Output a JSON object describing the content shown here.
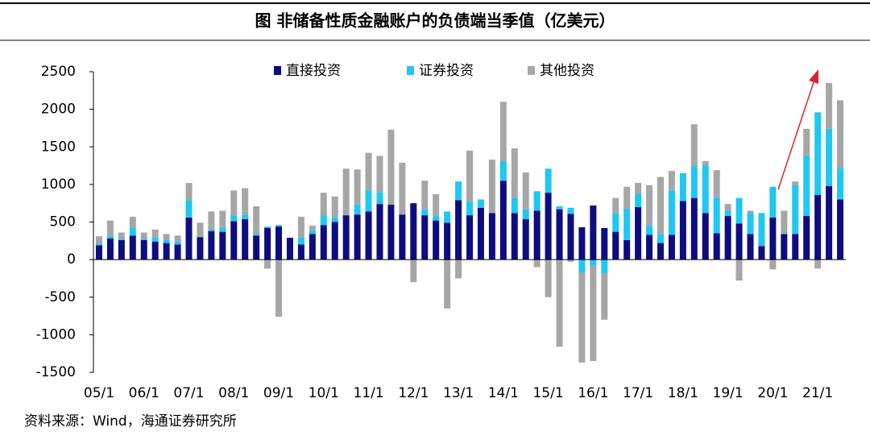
{
  "chart_data": {
    "type": "bar",
    "stacked": true,
    "title": "图  非储备性质金融账户的负债端当季值（亿美元）",
    "source": "资料来源：Wind，海通证券研究所",
    "categories": [
      "05/1",
      null,
      null,
      null,
      "06/1",
      null,
      null,
      null,
      "07/1",
      null,
      null,
      null,
      "08/1",
      null,
      null,
      null,
      "09/1",
      null,
      null,
      null,
      "10/1",
      null,
      null,
      null,
      "11/1",
      null,
      null,
      null,
      "12/1",
      null,
      null,
      null,
      "13/1",
      null,
      null,
      null,
      "14/1",
      null,
      null,
      null,
      "15/1",
      null,
      null,
      null,
      "16/1",
      null,
      null,
      null,
      "17/1",
      null,
      null,
      null,
      "18/1",
      null,
      null,
      null,
      "19/1",
      null,
      null,
      null,
      "20/1",
      null,
      null,
      null,
      "21/1",
      null,
      null
    ],
    "series": [
      {
        "name": "直接投资",
        "color": "#0d0d80",
        "values": [
          190,
          280,
          260,
          320,
          260,
          240,
          220,
          200,
          560,
          300,
          380,
          370,
          510,
          540,
          320,
          420,
          440,
          290,
          200,
          340,
          460,
          500,
          590,
          600,
          640,
          740,
          730,
          600,
          750,
          590,
          520,
          490,
          790,
          590,
          690,
          620,
          1050,
          620,
          540,
          650,
          890,
          670,
          610,
          430,
          720,
          420,
          370,
          260,
          700,
          330,
          220,
          330,
          780,
          820,
          620,
          350,
          580,
          480,
          340,
          180,
          560,
          340,
          340,
          580,
          860,
          980,
          800
        ]
      },
      {
        "name": "证券投资",
        "color": "#1ec8f0",
        "values": [
          20,
          40,
          20,
          100,
          20,
          60,
          40,
          40,
          230,
          0,
          30,
          50,
          80,
          60,
          20,
          20,
          20,
          0,
          100,
          50,
          130,
          60,
          0,
          130,
          280,
          160,
          0,
          0,
          0,
          80,
          60,
          150,
          250,
          180,
          110,
          0,
          260,
          200,
          130,
          260,
          320,
          40,
          80,
          -170,
          -80,
          -180,
          250,
          420,
          180,
          120,
          120,
          590,
          370,
          420,
          630,
          470,
          70,
          340,
          280,
          440,
          410,
          0,
          650,
          800,
          1100,
          760,
          420
        ]
      },
      {
        "name": "其他投资",
        "color": "#a6a6a6",
        "values": [
          100,
          200,
          80,
          150,
          80,
          100,
          80,
          80,
          230,
          190,
          230,
          230,
          330,
          350,
          370,
          -120,
          -760,
          0,
          270,
          60,
          300,
          280,
          620,
          470,
          500,
          480,
          1000,
          690,
          -300,
          380,
          290,
          -650,
          -250,
          680,
          0,
          710,
          790,
          660,
          490,
          -100,
          -500,
          -1160,
          -30,
          -1200,
          -1270,
          -620,
          200,
          290,
          140,
          540,
          760,
          260,
          0,
          560,
          60,
          370,
          90,
          -280,
          30,
          0,
          -130,
          310,
          50,
          360,
          -120,
          610,
          900
        ]
      }
    ],
    "ylim": [
      -1500,
      2500
    ],
    "yticks": [
      -1500,
      -1000,
      -500,
      0,
      500,
      1000,
      1500,
      2000,
      2500
    ],
    "grid": false,
    "legend": "top"
  }
}
